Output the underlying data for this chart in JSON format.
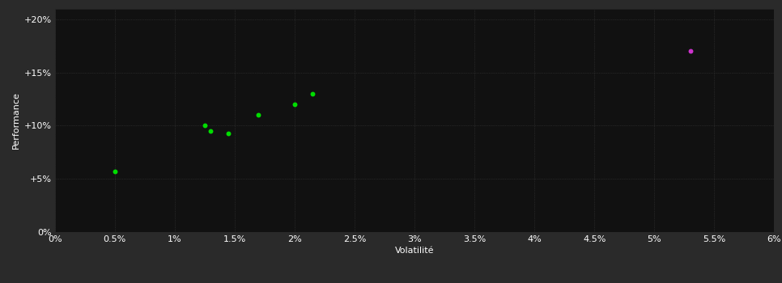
{
  "outer_bg_color": "#2a2a2a",
  "plot_bg_color": "#111111",
  "grid_color": "#3a3a3a",
  "grid_style": "dotted",
  "text_color": "#ffffff",
  "xlabel": "Volatilité",
  "ylabel": "Performance",
  "xlim": [
    0.0,
    0.06
  ],
  "ylim": [
    0.0,
    0.21
  ],
  "xtick_vals": [
    0.0,
    0.005,
    0.01,
    0.015,
    0.02,
    0.025,
    0.03,
    0.035,
    0.04,
    0.045,
    0.05,
    0.055,
    0.06
  ],
  "xtick_labels": [
    "0%",
    "0.5%",
    "1%",
    "1.5%",
    "2%",
    "2.5%",
    "3%",
    "3.5%",
    "4%",
    "4.5%",
    "5%",
    "5.5%",
    "6%"
  ],
  "ytick_vals": [
    0.0,
    0.05,
    0.1,
    0.15,
    0.2
  ],
  "ytick_labels": [
    "0%",
    "+5%",
    "+10%",
    "+15%",
    "+20%"
  ],
  "green_points": [
    [
      0.005,
      0.057
    ],
    [
      0.0125,
      0.1
    ],
    [
      0.013,
      0.095
    ],
    [
      0.0145,
      0.093
    ],
    [
      0.017,
      0.11
    ],
    [
      0.02,
      0.12
    ],
    [
      0.0215,
      0.13
    ]
  ],
  "green_color": "#00dd00",
  "magenta_points": [
    [
      0.053,
      0.17
    ]
  ],
  "magenta_color": "#cc33cc",
  "point_size": 18,
  "font_size_axis_label": 8,
  "font_size_tick": 8
}
